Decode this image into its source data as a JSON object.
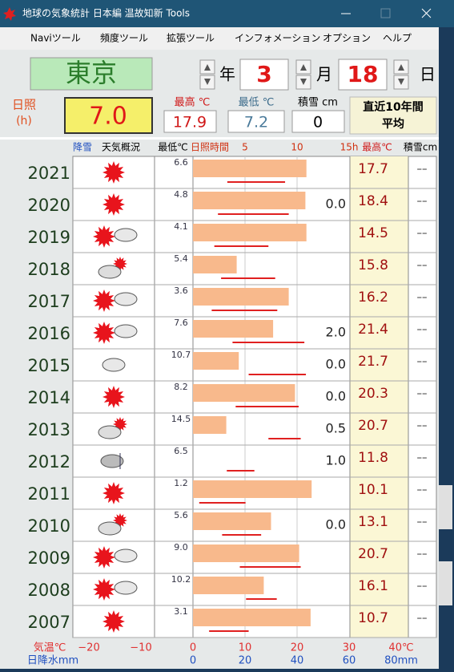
{
  "window": {
    "title": "地球の気象統計 日本編 温故知新 Tools",
    "menu": [
      "Naviツール",
      "頻度ツール",
      "拡張ツール",
      "インフォメーション",
      "オプション",
      "ヘルプ"
    ]
  },
  "controls": {
    "city": "東京",
    "year_label": "年",
    "month": 3,
    "month_label": "月",
    "day": 18,
    "day_label": "日"
  },
  "summary": {
    "sunshine_label": [
      "日照",
      "(h)"
    ],
    "sunshine": {
      "value": 7.0,
      "label": "7.0"
    },
    "max_label": "最高 ℃",
    "max": {
      "value": 17.9,
      "label": "17.9"
    },
    "min_label": "最低 ℃",
    "min": {
      "value": 7.2,
      "label": "7.2"
    },
    "snow_label": "積雪 cm",
    "snow": 0,
    "period": [
      "直近10年間",
      "平均"
    ]
  },
  "table": {
    "headers": {
      "snowfall": "降雪",
      "weather": "天気概況",
      "min": "最低℃",
      "max": "最高℃",
      "snow": "積雪cm"
    },
    "sunshine_axis": {
      "label": "日照時間",
      "xlim": [
        0,
        15
      ],
      "xticks": [
        5,
        10,
        {
          "value": 15,
          "label": "15h"
        }
      ]
    },
    "years": [
      2021,
      2020,
      2019,
      2018,
      2017,
      2016,
      2015,
      2014,
      2013,
      2012,
      2011,
      2010,
      2009,
      2008,
      2007
    ],
    "min_temp": {
      "values": [
        6.6,
        4.8,
        4.1,
        5.4,
        3.6,
        7.6,
        10.7,
        8.2,
        14.5,
        6.5,
        1.2,
        5.6,
        9.0,
        10.2,
        3.1
      ],
      "value_labels": [
        "6.6",
        "4.8",
        "4.1",
        "5.4",
        "3.6",
        "7.6",
        "10.7",
        "8.2",
        "14.5",
        "6.5",
        "1.2",
        "5.6",
        "9.0",
        "10.2",
        "3.1"
      ]
    },
    "sunshine": {
      "values": [
        10.9,
        10.8,
        10.9,
        4.2,
        9.2,
        7.7,
        4.4,
        9.8,
        3.2,
        0,
        11.4,
        7.5,
        10.2,
        6.8,
        11.3
      ]
    },
    "precip": [
      null,
      "0.0",
      null,
      null,
      null,
      "2.0",
      "0.0",
      "0.0",
      "0.5",
      "1.0",
      null,
      "0.0",
      null,
      null,
      null
    ],
    "max_temp": {
      "values": [
        17.7,
        18.4,
        14.5,
        15.8,
        16.2,
        21.4,
        21.7,
        20.3,
        20.7,
        11.8,
        10.1,
        13.1,
        20.7,
        16.1,
        10.7
      ],
      "value_labels": [
        "17.7",
        "18.4",
        "14.5",
        "15.8",
        "16.2",
        "21.4",
        "21.7",
        "20.3",
        "20.7",
        "11.8",
        "10.1",
        "13.1",
        "20.7",
        "16.1",
        "10.7"
      ]
    },
    "snow": [
      "––",
      "––",
      "––",
      "––",
      "––",
      "––",
      "––",
      "––",
      "––",
      "––",
      "––",
      "––",
      "––",
      "––",
      "––"
    ],
    "temp_axis": {
      "label": "気温℃",
      "xlim": [
        -20,
        40
      ],
      "xticks": [
        {
          "value": -20,
          "label": "−20"
        },
        {
          "value": -10,
          "label": "−10"
        },
        0,
        10,
        20,
        30,
        {
          "value": 40,
          "label": "40℃"
        }
      ]
    },
    "precip_axis": {
      "label": "日降水mm",
      "xlim": [
        0,
        80
      ],
      "xticks": [
        0,
        20,
        40,
        60,
        {
          "value": 80,
          "label": "80mm"
        }
      ]
    }
  }
}
